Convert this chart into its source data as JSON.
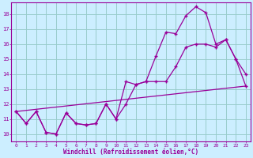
{
  "xlabel": "Windchill (Refroidissement éolien,°C)",
  "xlim": [
    -0.5,
    23.5
  ],
  "ylim": [
    9.5,
    18.8
  ],
  "xticks": [
    0,
    1,
    2,
    3,
    4,
    5,
    6,
    7,
    8,
    9,
    10,
    11,
    12,
    13,
    14,
    15,
    16,
    17,
    18,
    19,
    20,
    21,
    22,
    23
  ],
  "yticks": [
    10,
    11,
    12,
    13,
    14,
    15,
    16,
    17,
    18
  ],
  "background_color": "#cceeff",
  "grid_color": "#99cccc",
  "line_color": "#990099",
  "line1_x": [
    0,
    1,
    2,
    3,
    4,
    5,
    6,
    7,
    8,
    9,
    10,
    11,
    12,
    13,
    14,
    15,
    16,
    17,
    18,
    19,
    20,
    21,
    22,
    23
  ],
  "line1_y": [
    11.5,
    10.7,
    11.5,
    10.1,
    10.0,
    11.4,
    10.7,
    10.6,
    10.7,
    12.0,
    11.0,
    13.5,
    13.3,
    13.5,
    15.2,
    16.8,
    16.7,
    17.9,
    18.5,
    18.1,
    16.0,
    16.3,
    15.0,
    14.0
  ],
  "line2_x": [
    0,
    1,
    2,
    3,
    4,
    5,
    6,
    7,
    8,
    9,
    10,
    11,
    12,
    13,
    14,
    15,
    16,
    17,
    18,
    19,
    20,
    21,
    22,
    23
  ],
  "line2_y": [
    11.5,
    10.7,
    11.5,
    10.1,
    10.0,
    11.4,
    10.7,
    10.6,
    10.7,
    12.0,
    11.0,
    12.0,
    13.3,
    13.5,
    13.5,
    13.5,
    14.5,
    15.8,
    16.0,
    16.0,
    15.8,
    16.3,
    15.0,
    13.2
  ],
  "line3_x": [
    0,
    23
  ],
  "line3_y": [
    11.5,
    13.2
  ]
}
